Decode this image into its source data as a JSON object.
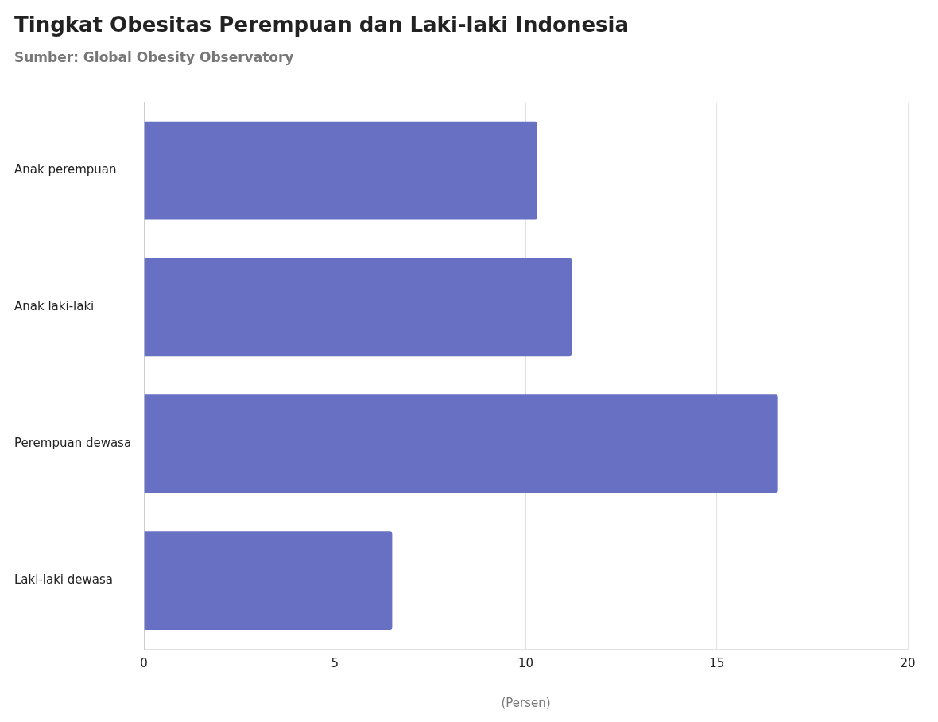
{
  "chart_data": {
    "type": "bar",
    "orientation": "horizontal",
    "title": "Tingkat Obesitas Perempuan dan Laki-laki Indonesia",
    "subtitle": "Sumber: Global Obesity Observatory",
    "xlabel": "(Persen)",
    "categories": [
      "Anak perempuan",
      "Anak laki-laki",
      "Perempuan dewasa",
      "Laki-laki dewasa"
    ],
    "values": [
      10.3,
      11.2,
      16.6,
      6.5
    ],
    "color": "#6870c4",
    "xlim": [
      0,
      20
    ],
    "xticks": [
      0,
      5,
      10,
      15,
      20
    ],
    "grid": "x",
    "legend": false
  }
}
